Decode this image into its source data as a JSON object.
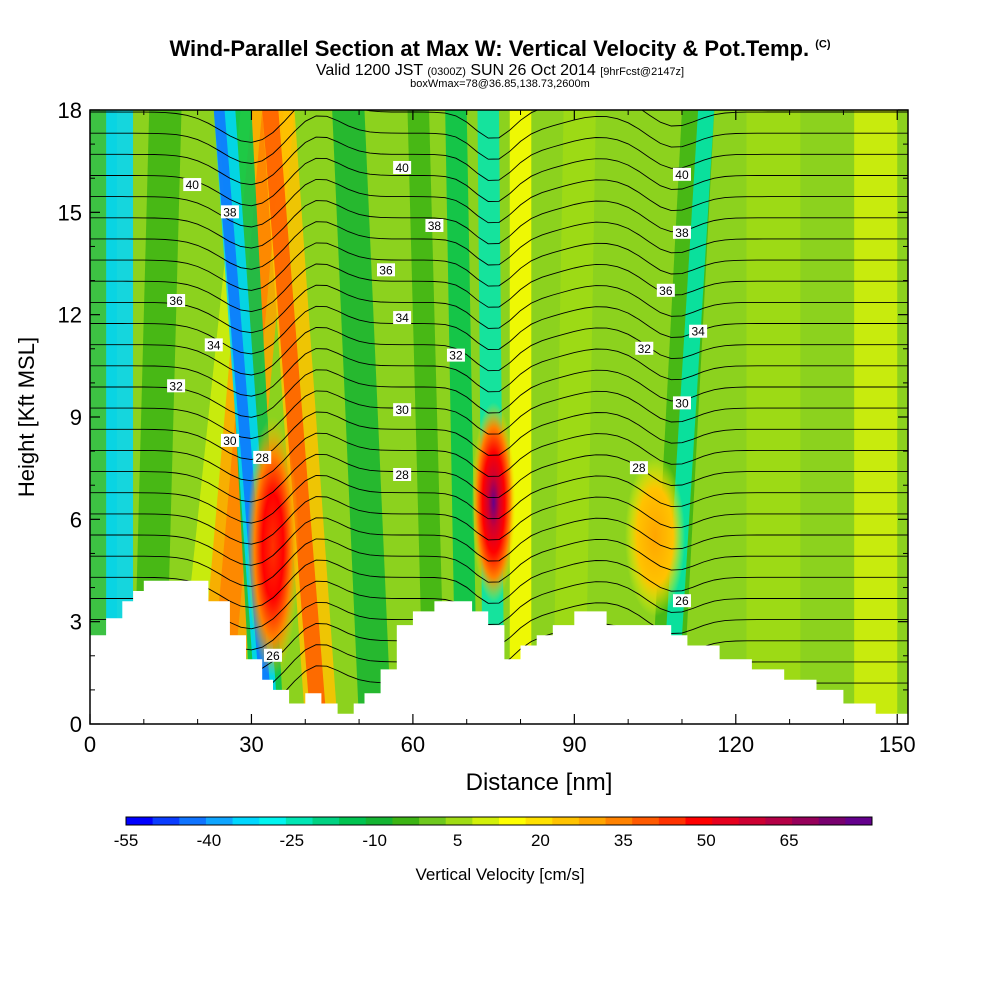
{
  "chart_data": {
    "type": "heatmap",
    "title": "Wind-Parallel Section at Max W: Vertical Velocity & Pot.Temp.",
    "title_mark": "(C)",
    "subtitle_parts": {
      "valid": "Valid 1200 JST",
      "utc": "(0300Z)",
      "date": "SUN 26 Oct 2014",
      "fcst": "[9hrFcst@2147z]"
    },
    "box_info": "boxWmax=78@36.85,138.73,2600m",
    "xlabel": "Distance [nm]",
    "ylabel": "Height [Kft MSL]",
    "xlim": [
      0,
      152
    ],
    "ylim": [
      0,
      18
    ],
    "x_ticks": [
      0,
      30,
      60,
      90,
      120,
      150
    ],
    "y_ticks": [
      0,
      3,
      6,
      9,
      12,
      15,
      18
    ],
    "colorbar": {
      "label": "Vertical Velocity [cm/s]",
      "ticks": [
        -55,
        -40,
        -25,
        -10,
        5,
        20,
        35,
        50,
        65
      ],
      "min": -55,
      "max": 80,
      "colors": [
        "#0000ff",
        "#0a3cff",
        "#0f73ff",
        "#0ea5ff",
        "#00d7ff",
        "#00f5f0",
        "#00e6b4",
        "#00d282",
        "#00c350",
        "#14b432",
        "#3cb414",
        "#6ec81e",
        "#a0dc14",
        "#d2f00a",
        "#ffff00",
        "#ffe100",
        "#ffc300",
        "#ffa500",
        "#ff8200",
        "#ff5a00",
        "#ff3200",
        "#ff0000",
        "#e6001e",
        "#cd0032",
        "#b40046",
        "#96005a",
        "#78006e",
        "#64008c"
      ]
    },
    "vertical_velocity_features": [
      {
        "x": 34,
        "y_top": 18,
        "y_bottom": 1.5,
        "peak_cm_s": 60,
        "peak_height": 5.0
      },
      {
        "x": 75,
        "y_top": 18,
        "y_bottom": 3.5,
        "peak_cm_s": 78,
        "peak_height": 6.5
      },
      {
        "x": 105,
        "y_top": 8,
        "y_bottom": 3.5,
        "peak_cm_s": 32,
        "peak_height": 5.5
      }
    ],
    "potential_temperature_contour_labels": [
      {
        "value": "40",
        "x": 19,
        "y": 15.8
      },
      {
        "value": "38",
        "x": 26,
        "y": 15.0
      },
      {
        "value": "36",
        "x": 16,
        "y": 12.4
      },
      {
        "value": "34",
        "x": 23,
        "y": 11.1
      },
      {
        "value": "32",
        "x": 16,
        "y": 9.9
      },
      {
        "value": "30",
        "x": 26,
        "y": 8.3
      },
      {
        "value": "28",
        "x": 32,
        "y": 7.8
      },
      {
        "value": "26",
        "x": 34,
        "y": 2.0
      },
      {
        "value": "40",
        "x": 58,
        "y": 16.3
      },
      {
        "value": "38",
        "x": 64,
        "y": 14.6
      },
      {
        "value": "36",
        "x": 55,
        "y": 13.3
      },
      {
        "value": "34",
        "x": 58,
        "y": 11.9
      },
      {
        "value": "32",
        "x": 68,
        "y": 10.8
      },
      {
        "value": "30",
        "x": 58,
        "y": 9.2
      },
      {
        "value": "28",
        "x": 58,
        "y": 7.3
      },
      {
        "value": "40",
        "x": 110,
        "y": 16.1
      },
      {
        "value": "38",
        "x": 110,
        "y": 14.4
      },
      {
        "value": "36",
        "x": 107,
        "y": 12.7
      },
      {
        "value": "34",
        "x": 113,
        "y": 11.5
      },
      {
        "value": "32",
        "x": 103,
        "y": 11.0
      },
      {
        "value": "30",
        "x": 110,
        "y": 9.4
      },
      {
        "value": "28",
        "x": 102,
        "y": 7.5
      },
      {
        "value": "26",
        "x": 110,
        "y": 3.6
      }
    ],
    "terrain_height_kft": [
      [
        0,
        2.6
      ],
      [
        3,
        2.6
      ],
      [
        3,
        3.1
      ],
      [
        6,
        3.1
      ],
      [
        6,
        3.6
      ],
      [
        8,
        3.6
      ],
      [
        8,
        3.9
      ],
      [
        10,
        3.9
      ],
      [
        10,
        4.2
      ],
      [
        22,
        4.2
      ],
      [
        22,
        3.6
      ],
      [
        26,
        3.6
      ],
      [
        26,
        2.6
      ],
      [
        29,
        2.6
      ],
      [
        29,
        1.9
      ],
      [
        32,
        1.9
      ],
      [
        32,
        1.3
      ],
      [
        34,
        1.3
      ],
      [
        34,
        1.0
      ],
      [
        37,
        1.0
      ],
      [
        37,
        0.6
      ],
      [
        40,
        0.6
      ],
      [
        40,
        0.9
      ],
      [
        43,
        0.9
      ],
      [
        43,
        0.6
      ],
      [
        46,
        0.6
      ],
      [
        46,
        0.3
      ],
      [
        49,
        0.3
      ],
      [
        49,
        0.6
      ],
      [
        51,
        0.6
      ],
      [
        51,
        0.9
      ],
      [
        54,
        0.9
      ],
      [
        54,
        1.6
      ],
      [
        57,
        1.6
      ],
      [
        57,
        2.9
      ],
      [
        60,
        2.9
      ],
      [
        60,
        3.3
      ],
      [
        64,
        3.3
      ],
      [
        64,
        3.6
      ],
      [
        71,
        3.6
      ],
      [
        71,
        3.3
      ],
      [
        74,
        3.3
      ],
      [
        74,
        2.9
      ],
      [
        77,
        2.9
      ],
      [
        77,
        1.9
      ],
      [
        80,
        1.9
      ],
      [
        80,
        2.3
      ],
      [
        83,
        2.3
      ],
      [
        83,
        2.6
      ],
      [
        86,
        2.6
      ],
      [
        86,
        2.9
      ],
      [
        90,
        2.9
      ],
      [
        90,
        3.3
      ],
      [
        96,
        3.3
      ],
      [
        96,
        2.9
      ],
      [
        108,
        2.9
      ],
      [
        108,
        2.6
      ],
      [
        111,
        2.6
      ],
      [
        111,
        2.3
      ],
      [
        117,
        2.3
      ],
      [
        117,
        1.9
      ],
      [
        123,
        1.9
      ],
      [
        123,
        1.6
      ],
      [
        129,
        1.6
      ],
      [
        129,
        1.3
      ],
      [
        135,
        1.3
      ],
      [
        135,
        1.0
      ],
      [
        140,
        1.0
      ],
      [
        140,
        0.6
      ],
      [
        146,
        0.6
      ],
      [
        146,
        0.3
      ],
      [
        152,
        0.3
      ]
    ]
  }
}
